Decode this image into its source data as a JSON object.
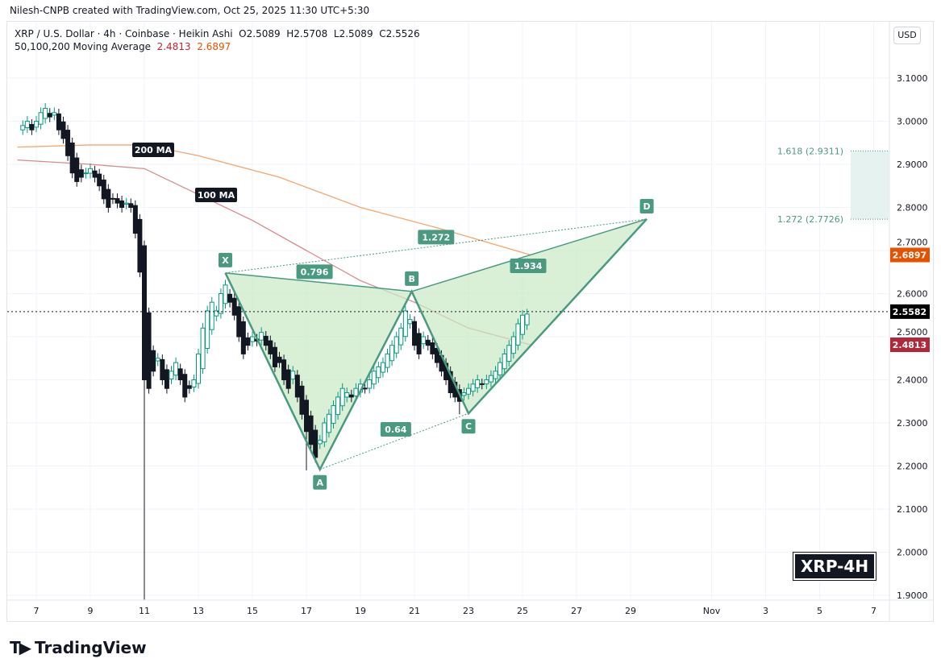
{
  "header": {
    "credit": "Nilesh-CNPB created with TradingView.com, Oct 25, 2025 11:30 UTC+5:30",
    "symbol_line": "XRP / U.S. Dollar · 4h · Coinbase · Heikin Ashi",
    "ohlc": {
      "o": "O2.5089",
      "h": "H2.5708",
      "l": "L2.5089",
      "c": "C2.5526"
    },
    "ma_label": "50,100,200 Moving Average",
    "ma_values": [
      "2.4813",
      "2.6897"
    ]
  },
  "currency_button": "USD",
  "badge": "XRP-4H",
  "footer": {
    "logo_text": "TradingView"
  },
  "colors": {
    "up": "#089981",
    "down": "#131722",
    "pattern": "#4a9a7f",
    "ma200": "#f5a56b",
    "ma100": "#d98a8e",
    "fill": "#c9e9c4"
  },
  "chart_data": {
    "type": "candlestick",
    "candle_type": "heikin-ashi",
    "ylim": [
      1.88,
      3.17
    ],
    "y_ticks": [
      "3.1000",
      "3.0000",
      "2.9000",
      "2.8000",
      "2.7000",
      "2.6000",
      "2.5000",
      "2.4000",
      "2.3000",
      "2.2000",
      "2.1000",
      "2.0000",
      "1.9000"
    ],
    "x_ticks": [
      {
        "day": 7,
        "label": "7"
      },
      {
        "day": 9,
        "label": "9"
      },
      {
        "day": 11,
        "label": "11"
      },
      {
        "day": 13,
        "label": "13"
      },
      {
        "day": 15,
        "label": "15"
      },
      {
        "day": 17,
        "label": "17"
      },
      {
        "day": 19,
        "label": "19"
      },
      {
        "day": 21,
        "label": "21"
      },
      {
        "day": 23,
        "label": "23"
      },
      {
        "day": 25,
        "label": "25"
      },
      {
        "day": 27,
        "label": "27"
      },
      {
        "day": 29,
        "label": "29"
      },
      {
        "day": 32,
        "label": "Nov"
      },
      {
        "day": 34,
        "label": "3"
      },
      {
        "day": 36,
        "label": "5"
      },
      {
        "day": 38,
        "label": "7"
      }
    ],
    "candle_start_day": 6.5,
    "candle_step_days": 0.16667,
    "closes": [
      2.99,
      3.0,
      2.98,
      3.0,
      3.02,
      3.03,
      3.01,
      3.02,
      2.98,
      2.96,
      2.92,
      2.88,
      2.86,
      2.87,
      2.88,
      2.89,
      2.87,
      2.85,
      2.82,
      2.8,
      2.82,
      2.81,
      2.8,
      2.81,
      2.8,
      2.74,
      2.65,
      2.4,
      2.38,
      2.42,
      2.45,
      2.4,
      2.38,
      2.42,
      2.44,
      2.4,
      2.36,
      2.38,
      2.4,
      2.46,
      2.52,
      2.56,
      2.58,
      2.56,
      2.6,
      2.62,
      2.58,
      2.55,
      2.5,
      2.46,
      2.48,
      2.5,
      2.49,
      2.51,
      2.48,
      2.46,
      2.43,
      2.44,
      2.4,
      2.38,
      2.42,
      2.36,
      2.32,
      2.28,
      2.25,
      2.22,
      2.26,
      2.3,
      2.32,
      2.34,
      2.36,
      2.38,
      2.37,
      2.36,
      2.38,
      2.39,
      2.38,
      2.4,
      2.42,
      2.43,
      2.44,
      2.46,
      2.48,
      2.5,
      2.52,
      2.56,
      2.54,
      2.48,
      2.46,
      2.5,
      2.48,
      2.46,
      2.44,
      2.42,
      2.4,
      2.37,
      2.36,
      2.35,
      2.37,
      2.38,
      2.39,
      2.4,
      2.39,
      2.4,
      2.41,
      2.42,
      2.44,
      2.46,
      2.48,
      2.5,
      2.53,
      2.55,
      2.5526
    ],
    "extreme_lows": {
      "27": 1.89,
      "63": 2.19,
      "97": 2.32
    },
    "ma200": {
      "label": "200 MA",
      "points": [
        [
          6.3,
          2.94
        ],
        [
          9,
          2.945
        ],
        [
          11,
          2.945
        ],
        [
          13,
          2.92
        ],
        [
          16,
          2.87
        ],
        [
          19,
          2.8
        ],
        [
          22,
          2.75
        ],
        [
          25.3,
          2.6897
        ]
      ]
    },
    "ma100": {
      "label": "100 MA",
      "points": [
        [
          6.3,
          2.91
        ],
        [
          9,
          2.9
        ],
        [
          11,
          2.89
        ],
        [
          13,
          2.83
        ],
        [
          15,
          2.77
        ],
        [
          17,
          2.7
        ],
        [
          19,
          2.63
        ],
        [
          21,
          2.58
        ],
        [
          23,
          2.52
        ],
        [
          25.3,
          2.4813
        ]
      ]
    },
    "last_price": "2.5582",
    "last_price_value": 2.5582,
    "ma200_tag": "2.6897",
    "ma100_tag": "2.4813",
    "pattern": {
      "points": [
        {
          "label": "X",
          "day": 14,
          "price": 2.648
        },
        {
          "label": "A",
          "day": 17.5,
          "price": 2.192
        },
        {
          "label": "B",
          "day": 20.9,
          "price": 2.605
        },
        {
          "label": "C",
          "day": 23,
          "price": 2.322
        },
        {
          "label": "D",
          "day": 29.6,
          "price": 2.773
        }
      ],
      "ratios": {
        "xb": "0.796",
        "ac": "0.64",
        "xd": "1.272",
        "bd": "1.934"
      }
    },
    "fib_zone": {
      "low_label": "1.272 (2.7726)",
      "low": 2.7726,
      "high_label": "1.618 (2.9311)",
      "high": 2.9311
    }
  }
}
